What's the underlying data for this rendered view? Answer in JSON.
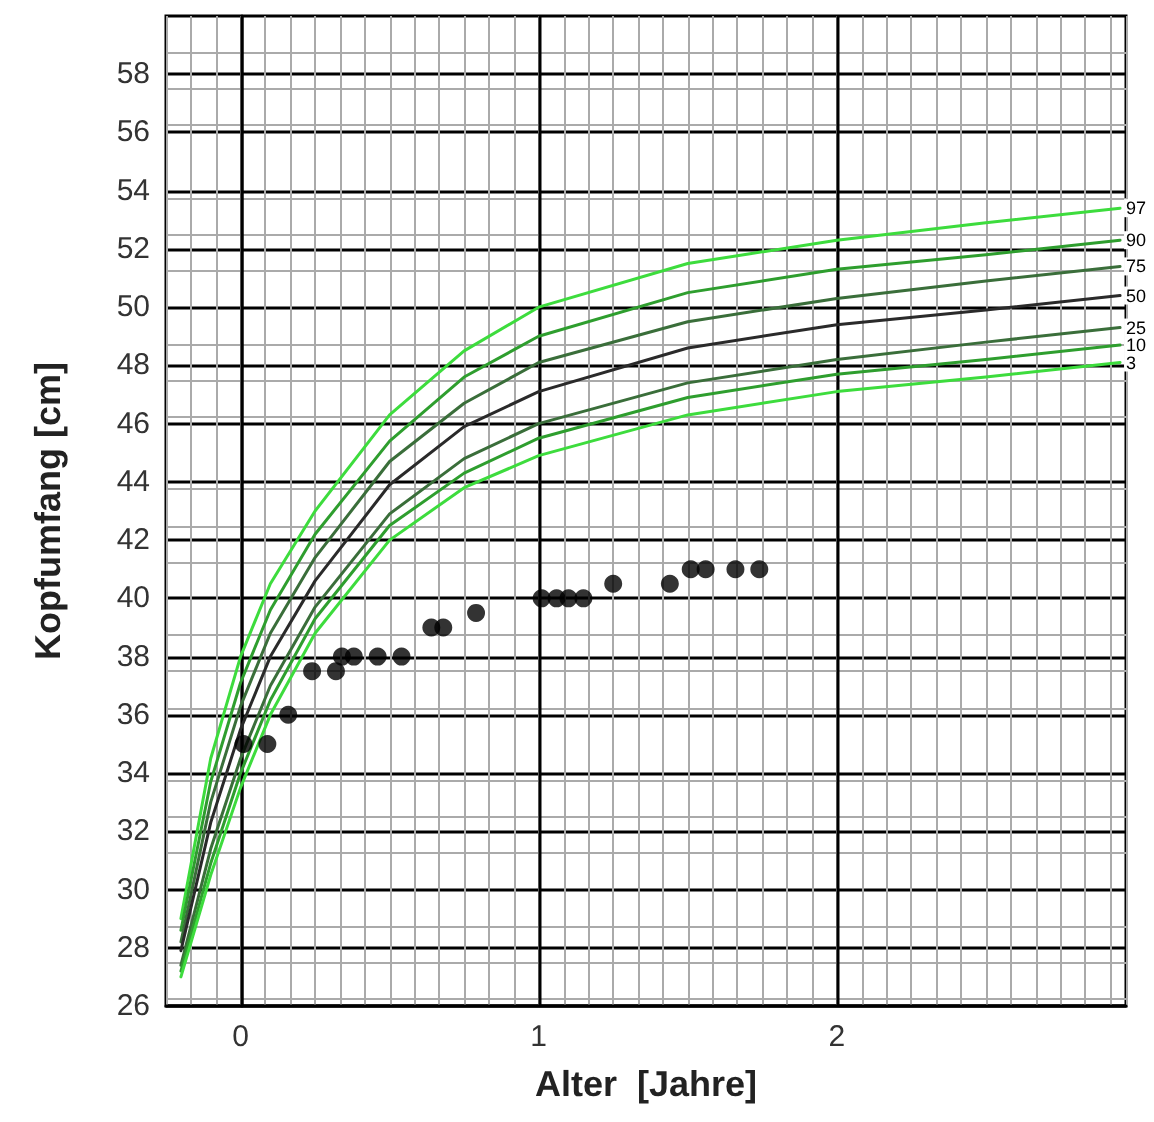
{
  "chart_data": {
    "type": "line",
    "xlabel": "Alter  [Jahre]",
    "ylabel": "Kopfumfang [cm]",
    "xlim": [
      -0.25,
      2.97
    ],
    "xticks": [
      0,
      1,
      2
    ],
    "ylim": [
      26,
      60
    ],
    "yticks": [
      26,
      28,
      30,
      32,
      34,
      36,
      38,
      40,
      42,
      44,
      46,
      48,
      50,
      52,
      54,
      56,
      58
    ],
    "grid": true,
    "legend": false,
    "marker": "none",
    "line_style": "solid",
    "series": [
      {
        "name": "97",
        "color": "#3ddc3d",
        "x": [
          -0.2,
          -0.1,
          0,
          0.1,
          0.25,
          0.5,
          0.75,
          1,
          1.5,
          2,
          2.5,
          2.95
        ],
        "values": [
          29,
          34.5,
          38,
          40.5,
          43,
          46.3,
          48.5,
          50,
          51.5,
          52.3,
          52.9,
          53.4
        ]
      },
      {
        "name": "90",
        "color": "#2e9e2e",
        "x": [
          -0.2,
          -0.1,
          0,
          0.1,
          0.25,
          0.5,
          0.75,
          1,
          1.5,
          2,
          2.5,
          2.95
        ],
        "values": [
          28.6,
          33.7,
          37.1,
          39.6,
          42.2,
          45.4,
          47.6,
          49.0,
          50.5,
          51.3,
          51.8,
          52.3
        ]
      },
      {
        "name": "75",
        "color": "#3a6e3a",
        "x": [
          -0.2,
          -0.1,
          0,
          0.1,
          0.25,
          0.5,
          0.75,
          1,
          1.5,
          2,
          2.5,
          2.95
        ],
        "values": [
          28.2,
          33.0,
          36.3,
          38.8,
          41.4,
          44.7,
          46.7,
          48.1,
          49.5,
          50.3,
          50.9,
          51.4
        ]
      },
      {
        "name": "50",
        "color": "#2a2a2a",
        "x": [
          -0.2,
          -0.1,
          0,
          0.1,
          0.25,
          0.5,
          0.75,
          1,
          1.5,
          2,
          2.5,
          2.95
        ],
        "values": [
          27.9,
          32.3,
          35.5,
          38.0,
          40.6,
          43.9,
          45.9,
          47.1,
          48.6,
          49.4,
          49.9,
          50.4
        ]
      },
      {
        "name": "25",
        "color": "#3a6e3a",
        "x": [
          -0.2,
          -0.1,
          0,
          0.1,
          0.25,
          0.5,
          0.75,
          1,
          1.5,
          2,
          2.5,
          2.95
        ],
        "values": [
          27.4,
          31.4,
          34.5,
          37.0,
          39.7,
          42.9,
          44.8,
          46.0,
          47.4,
          48.2,
          48.8,
          49.3
        ]
      },
      {
        "name": "10",
        "color": "#2e9e2e",
        "x": [
          -0.2,
          -0.1,
          0,
          0.1,
          0.25,
          0.5,
          0.75,
          1,
          1.5,
          2,
          2.5,
          2.95
        ],
        "values": [
          27.2,
          30.9,
          34.0,
          36.5,
          39.3,
          42.5,
          44.3,
          45.5,
          46.9,
          47.7,
          48.2,
          48.7
        ]
      },
      {
        "name": "3",
        "color": "#3ddc3d",
        "x": [
          -0.2,
          -0.1,
          0,
          0.1,
          0.25,
          0.5,
          0.75,
          1,
          1.5,
          2,
          2.5,
          2.95
        ],
        "values": [
          27,
          30.5,
          33.5,
          36,
          38.8,
          42,
          43.8,
          44.9,
          46.3,
          47.1,
          47.6,
          48.1
        ]
      },
      {
        "type": "scatter",
        "marker": "circle",
        "color": "#000000",
        "x": [
          0.01,
          0.09,
          0.16,
          0.24,
          0.32,
          0.34,
          0.38,
          0.46,
          0.54,
          0.64,
          0.68,
          0.79,
          1.01,
          1.06,
          1.1,
          1.15,
          1.25,
          1.44,
          1.51,
          1.56,
          1.66,
          1.74
        ],
        "values": [
          35,
          35,
          36,
          37.5,
          37.5,
          38,
          38,
          38,
          38,
          39,
          39,
          39.5,
          40,
          40,
          40,
          40,
          40.5,
          40.5,
          41,
          41,
          41,
          41
        ]
      }
    ]
  }
}
